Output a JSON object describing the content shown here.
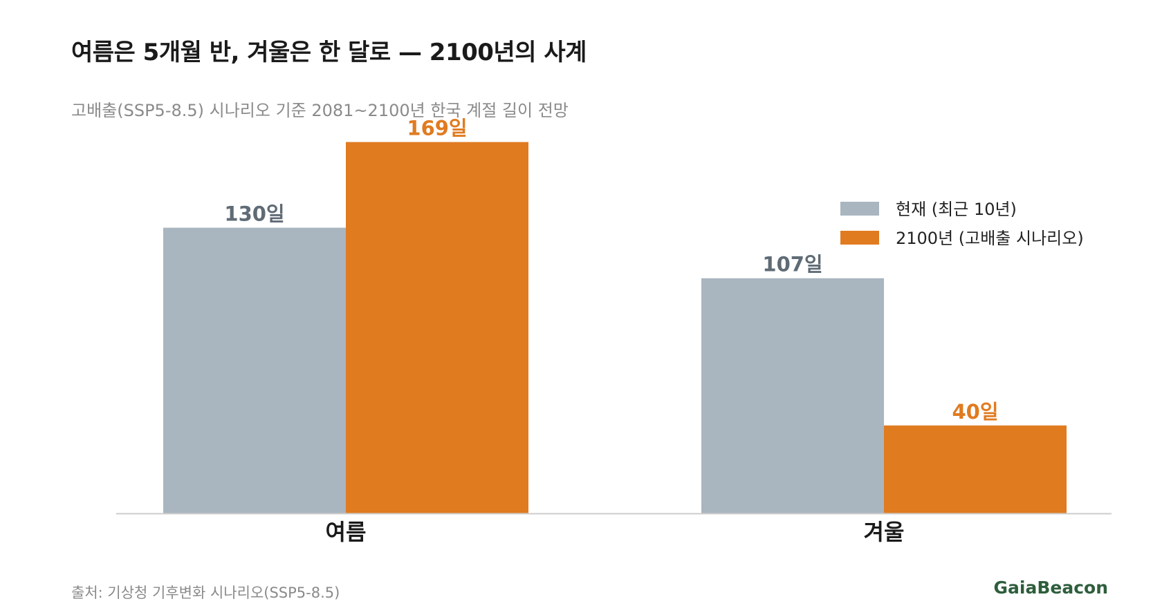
{
  "title": "여름은 5개월 반, 겨울은 한 달로 — 2100년의 사계",
  "subtitle": "고배출(SSP5-8.5) 시나리오 기준 2081~2100년 한국 계절 길이 전망",
  "source": "출처: 기상청 기후변화 시나리오(SSP5-8.5)",
  "brand": "GaiaBeacon",
  "colors": {
    "current": "#a9b5bf",
    "future": "#e07b20",
    "current_label": "#5f6b75",
    "future_label": "#e07b20",
    "axis": "#cccccc",
    "brand": "#2e5e3c"
  },
  "chart_data": {
    "type": "bar",
    "categories": [
      "여름",
      "겨울"
    ],
    "series": [
      {
        "name": "현재 (최근 10년)",
        "values": [
          130,
          107
        ],
        "labels": [
          "130일",
          "107일"
        ]
      },
      {
        "name": "2100년 (고배출 시나리오)",
        "values": [
          169,
          40
        ],
        "labels": [
          "169일",
          "40일"
        ]
      }
    ],
    "ylim": [
      0,
      200
    ],
    "grid": false,
    "legend_position": "top-right"
  }
}
